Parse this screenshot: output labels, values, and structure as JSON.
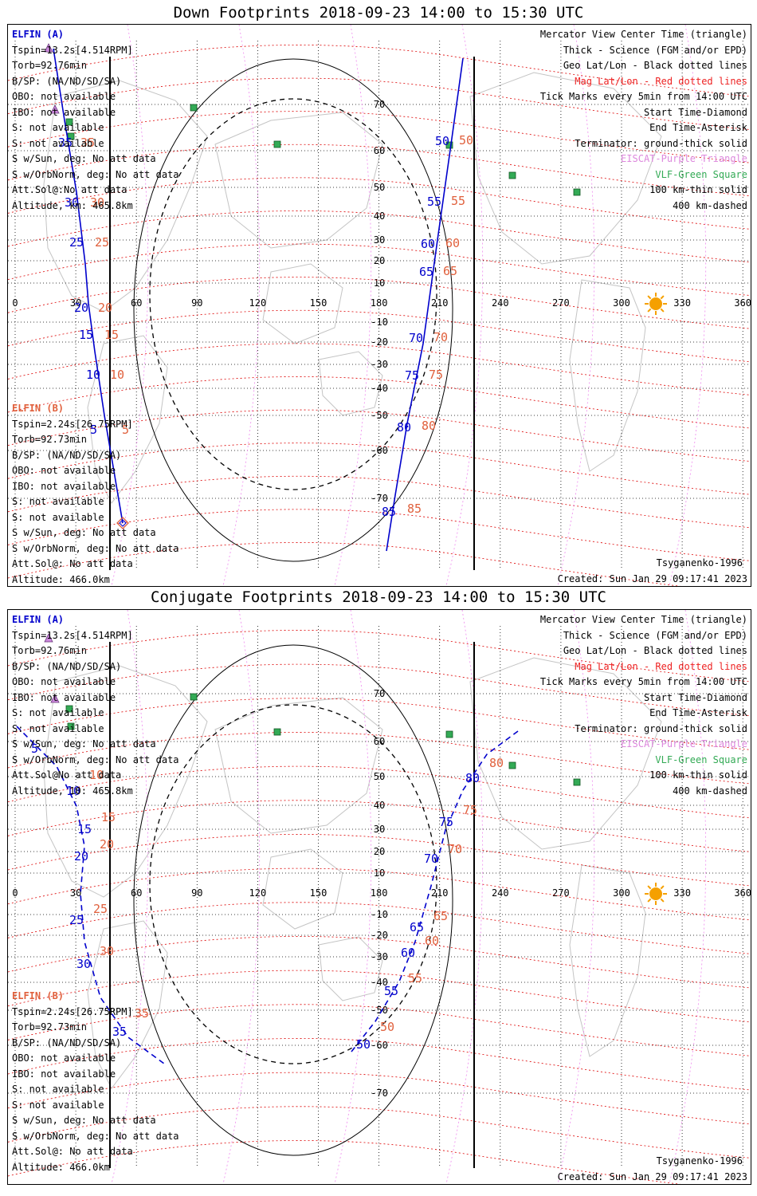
{
  "panels": [
    {
      "title": "Down Footprints 2018-09-23 14:00 to 15:30 UTC",
      "elfin_a": {
        "header": "ELFIN (A)",
        "lines": [
          "Tspin=13.2s[4.514RPM]",
          "Torb=92.76min",
          "B/SP: (NA/ND/SD/SA)",
          "OBO: not available",
          "IBO: not available",
          "S: not available",
          "S: not available",
          "S w/Sun, deg: No att data",
          "S w/OrbNorm, deg: No att data",
          "Att.Sol@:No att data",
          "Altitude, km: 465.8km"
        ]
      },
      "elfin_b": {
        "header": "ELFIN (B)",
        "lines": [
          "Tspin=2.24s[26.75RPM]",
          "Torb=92.73min",
          "B/SP: (NA/ND/SD/SA)",
          "OBO: not available",
          "IBO: not available",
          "S: not available",
          "S: not available",
          "S w/Sun, deg: No att data",
          "S w/OrbNorm, deg: No att data",
          "Att.Sol@: No att data",
          "Altitude: 466.0km"
        ]
      },
      "legend": {
        "view": "Mercator View Center Time (triangle)",
        "thick": "Thick - Science (FGM and/or EPD)",
        "geo": "Geo Lat/Lon - Black dotted lines",
        "mag": "Mag Lat/Lon - Red dotted lines",
        "ticks": "Tick Marks every 5min from 14:00 UTC",
        "start": "Start Time-Diamond",
        "end": "End Time-Asterisk",
        "terminator": "Terminator: ground-thick solid",
        "eiscat": "EISCAT-Purple Triangle",
        "vlf": "VLF-Green Square",
        "km100": "100 km-thin solid",
        "km400": "400 km-dashed"
      },
      "model": "Tsyganenko-1996",
      "created": "Created: Sun Jan 29 09:17:41 2023",
      "ticks_a": [
        [
          "35",
          [
            72,
            183
          ]
        ],
        [
          "30",
          [
            80,
            258
          ]
        ],
        [
          "25",
          [
            86,
            308
          ]
        ],
        [
          "20",
          [
            92,
            390
          ]
        ],
        [
          "15",
          [
            98,
            424
          ]
        ],
        [
          "10",
          [
            107,
            474
          ]
        ],
        [
          "5",
          [
            112,
            543
          ]
        ],
        [
          "50",
          [
            545,
            181
          ]
        ],
        [
          "55",
          [
            535,
            257
          ]
        ],
        [
          "60",
          [
            527,
            310
          ]
        ],
        [
          "65",
          [
            525,
            345
          ]
        ],
        [
          "70",
          [
            512,
            428
          ]
        ],
        [
          "75",
          [
            507,
            475
          ]
        ],
        [
          "80",
          [
            497,
            540
          ]
        ],
        [
          "85",
          [
            478,
            646
          ]
        ]
      ],
      "ticks_b": [
        [
          "35",
          [
            100,
            183
          ]
        ],
        [
          "30",
          [
            112,
            258
          ]
        ],
        [
          "25",
          [
            118,
            308
          ]
        ],
        [
          "20",
          [
            122,
            390
          ]
        ],
        [
          "15",
          [
            130,
            424
          ]
        ],
        [
          "10",
          [
            137,
            474
          ]
        ],
        [
          "5",
          [
            152,
            543
          ]
        ],
        [
          "50",
          [
            575,
            180
          ]
        ],
        [
          "55",
          [
            565,
            256
          ]
        ],
        [
          "60",
          [
            558,
            309
          ]
        ],
        [
          "65",
          [
            555,
            344
          ]
        ],
        [
          "70",
          [
            543,
            427
          ]
        ],
        [
          "75",
          [
            537,
            474
          ]
        ],
        [
          "80",
          [
            528,
            538
          ]
        ],
        [
          "85",
          [
            510,
            642
          ]
        ]
      ]
    },
    {
      "title": "Conjugate Footprints 2018-09-23 14:00 to 15:30 UTC",
      "elfin_a": {
        "header": "ELFIN (A)",
        "lines": [
          "Tspin=13.2s[4.514RPM]",
          "Torb=92.76min",
          "B/SP: (NA/ND/SD/SA)",
          "OBO: not available",
          "IBO: not available",
          "S: not available",
          "S: not available",
          "S w/Sun, deg: No att data",
          "S w/OrbNorm, deg: No att data",
          "Att.Sol@No att data",
          "Altitude, 10: 465.8km"
        ]
      },
      "elfin_b": {
        "header": "ELFIN (B)",
        "lines": [
          "Tspin=2.24s[26.75RPM]",
          "Torb=92.73min",
          "B/SP: (NA/ND/SD/SA)",
          "OBO: not available",
          "IBO: not available",
          "S: not available",
          "S: not available",
          "S w/Sun, deg: No att data",
          "S w/OrbNorm, deg: No att data",
          "Att.Sol@: No att data",
          "Altitude: 466.0km"
        ]
      },
      "legend": {
        "view": "Mercator View Center Time (triangle)",
        "thick": "Thick - Science (FGM and/or EPD)",
        "geo": "Geo Lat/Lon - Black dotted lines",
        "mag": "Mag Lat/Lon - Red dotted lines",
        "ticks": "Tick Marks every 5min from 14:00 UTC",
        "start": "Start Time-Diamond",
        "end": "End Time-Asterisk",
        "terminator": "Terminator: ground-thick solid",
        "eiscat": "EISCAT-Purple Triangle",
        "vlf": "VLF-Green Square",
        "km100": "100 km-thin solid",
        "km400": "400 km-dashed"
      },
      "model": "Tsyganenko-1996",
      "created": "Created: Sun Jan 29 09:17:41 2023",
      "ticks_a": [
        [
          "5",
          [
            38,
            943
          ]
        ],
        [
          "10",
          [
            82,
            996
          ]
        ],
        [
          "15",
          [
            96,
            1044
          ]
        ],
        [
          "20",
          [
            92,
            1078
          ]
        ],
        [
          "25",
          [
            86,
            1158
          ]
        ],
        [
          "30",
          [
            95,
            1213
          ]
        ],
        [
          "35",
          [
            140,
            1298
          ]
        ],
        [
          "50",
          [
            446,
            1314
          ]
        ],
        [
          "55",
          [
            481,
            1247
          ]
        ],
        [
          "60",
          [
            502,
            1199
          ]
        ],
        [
          "65",
          [
            513,
            1167
          ]
        ],
        [
          "70",
          [
            531,
            1081
          ]
        ],
        [
          "75",
          [
            550,
            1035
          ]
        ],
        [
          "80",
          [
            583,
            980
          ]
        ]
      ],
      "ticks_b": [
        [
          "10",
          [
            111,
            976
          ]
        ],
        [
          "15",
          [
            126,
            1029
          ]
        ],
        [
          "20",
          [
            124,
            1063
          ]
        ],
        [
          "25",
          [
            116,
            1144
          ]
        ],
        [
          "30",
          [
            124,
            1197
          ]
        ],
        [
          "35",
          [
            168,
            1275
          ]
        ],
        [
          "50",
          [
            476,
            1292
          ]
        ],
        [
          "55",
          [
            511,
            1231
          ]
        ],
        [
          "60",
          [
            532,
            1184
          ]
        ],
        [
          "65",
          [
            543,
            1153
          ]
        ],
        [
          "70",
          [
            561,
            1069
          ]
        ],
        [
          "75",
          [
            580,
            1020
          ]
        ],
        [
          "80",
          [
            613,
            961
          ]
        ]
      ]
    }
  ],
  "axes": {
    "lon_labels": [
      "0",
      "30",
      "60",
      "90",
      "120",
      "150",
      "180",
      "210",
      "240",
      "270",
      "300",
      "330",
      "360"
    ],
    "lat_labels": [
      "70",
      "60",
      "50",
      "40",
      "30",
      "20",
      "10",
      "-10",
      "-20",
      "-30",
      "-40",
      "-50",
      "-60",
      "-70"
    ]
  },
  "colors": {
    "elfin_a": "#0000cc",
    "elfin_b": "#e0603c",
    "mag_grid": "#dd0000",
    "geo_grid": "#000000",
    "vlf": "#33aa55",
    "eiscat": "#dd88dd",
    "sun": "#f5a000"
  }
}
